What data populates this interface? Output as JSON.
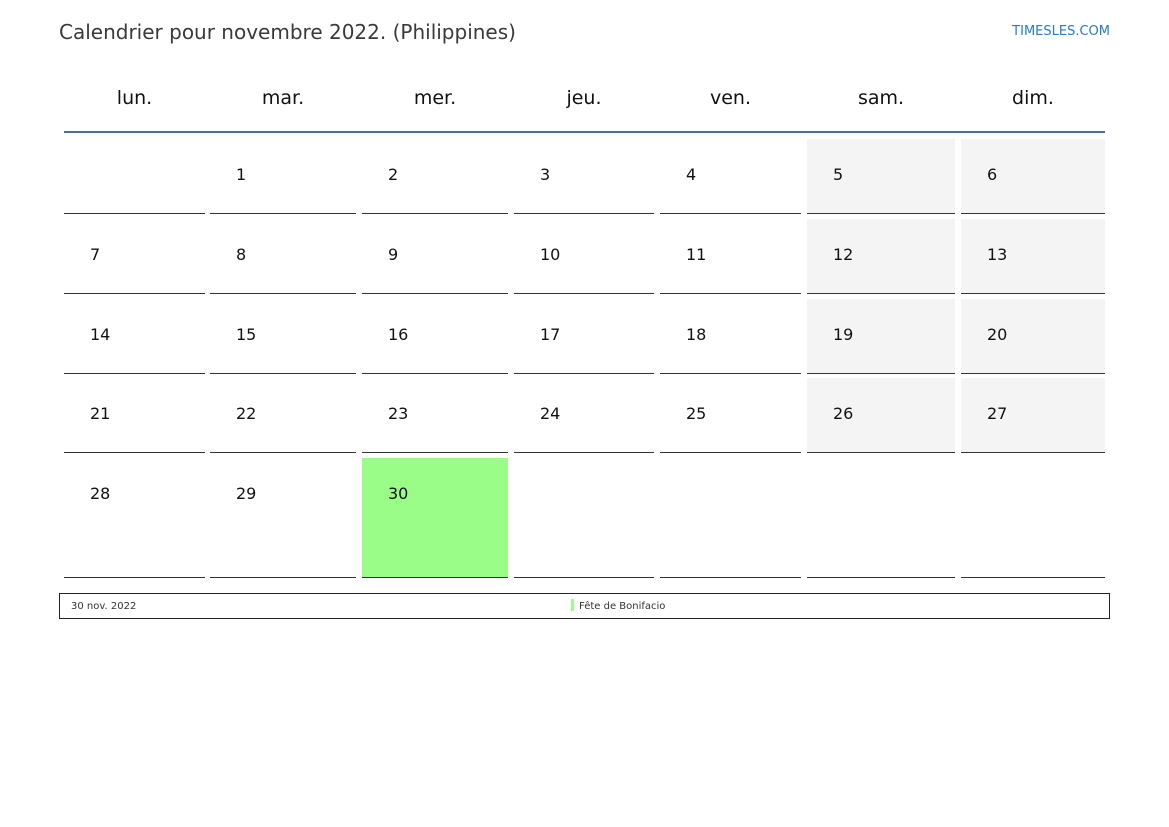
{
  "header": {
    "title": "Calendrier pour novembre 2022. (Philippines)",
    "brand": "TIMESLES.COM"
  },
  "weekdays": [
    "lun.",
    "mar.",
    "mer.",
    "jeu.",
    "ven.",
    "sam.",
    "dim."
  ],
  "weeks": [
    [
      "",
      "1",
      "2",
      "3",
      "4",
      "5",
      "6"
    ],
    [
      "7",
      "8",
      "9",
      "10",
      "11",
      "12",
      "13"
    ],
    [
      "14",
      "15",
      "16",
      "17",
      "18",
      "19",
      "20"
    ],
    [
      "21",
      "22",
      "23",
      "24",
      "25",
      "26",
      "27"
    ],
    [
      "28",
      "29",
      "30",
      "",
      "",
      "",
      ""
    ]
  ],
  "weekend_columns": [
    5,
    6
  ],
  "holiday_day": "30",
  "colors": {
    "holiday": "#99fd88",
    "weekend": "#f4f4f4",
    "header_line": "#4a6d99",
    "brand": "#2a7ac0"
  },
  "legend": {
    "date": "30 nov. 2022",
    "name": "Fête de Bonifacio"
  }
}
